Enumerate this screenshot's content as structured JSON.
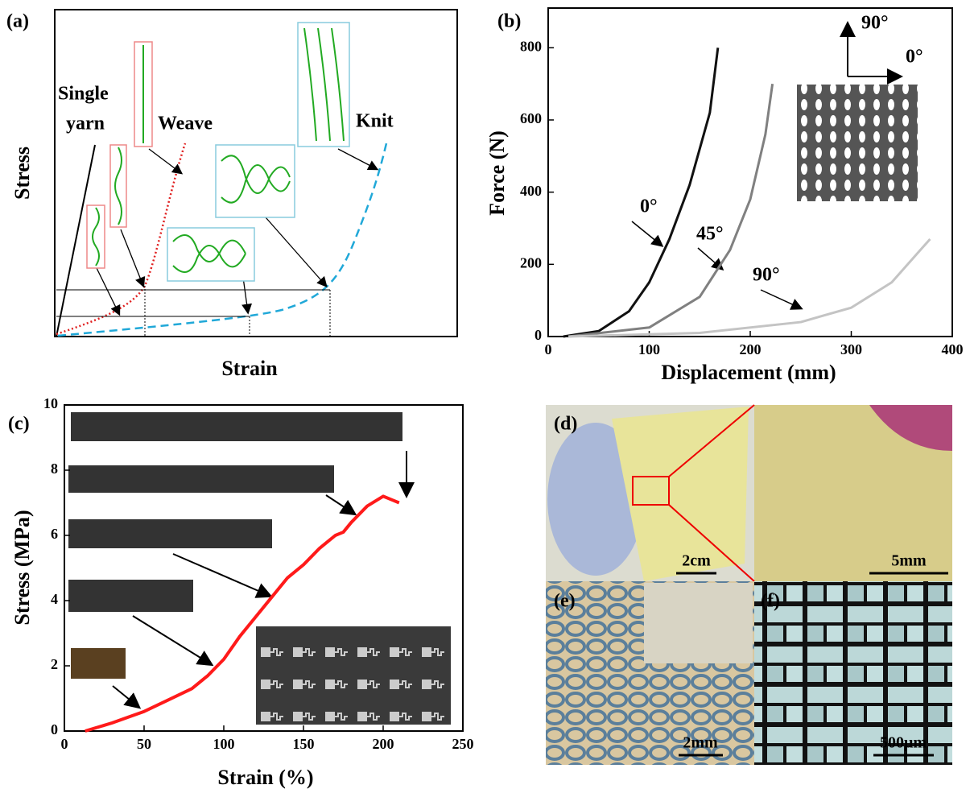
{
  "diagram": {
    "label": "(a)",
    "y_label": "Stress",
    "x_label": "Strain",
    "single_yarn": [
      "Single",
      "yarn"
    ],
    "weave": "Weave",
    "knit": "Knit"
  },
  "chart_data": [
    {
      "type": "line",
      "panel_label": "(b)",
      "x_label": "Displacement (mm)",
      "y_label": "Force (N)",
      "xlim": [
        0,
        400
      ],
      "xticks": [
        0,
        100,
        200,
        300,
        400
      ],
      "ylim": [
        0,
        910
      ],
      "yticks": [
        0,
        200,
        400,
        600,
        800
      ],
      "inset_labels": [
        "90°",
        "0°"
      ],
      "series": [
        {
          "name": "0°",
          "color": "#111111",
          "x": [
            15,
            50,
            80,
            100,
            120,
            140,
            160,
            168
          ],
          "values": [
            0,
            15,
            70,
            150,
            270,
            420,
            620,
            800
          ]
        },
        {
          "name": "45°",
          "color": "#808080",
          "x": [
            20,
            100,
            150,
            180,
            200,
            215,
            222
          ],
          "values": [
            0,
            25,
            110,
            240,
            380,
            560,
            700
          ]
        },
        {
          "name": "90°",
          "color": "#c4c4c4",
          "x": [
            20,
            150,
            250,
            300,
            340,
            378
          ],
          "values": [
            0,
            10,
            40,
            80,
            150,
            270
          ]
        }
      ]
    },
    {
      "type": "line",
      "panel_label": "(c)",
      "x_label": "Strain (%)",
      "y_label": "Stress (MPa)",
      "xlim": [
        0,
        250
      ],
      "xticks": [
        0,
        50,
        100,
        150,
        200,
        250
      ],
      "ylim": [
        0,
        10
      ],
      "yticks": [
        0,
        2,
        4,
        6,
        8,
        10
      ],
      "color": "#ff1a1a",
      "x": [
        13,
        30,
        50,
        65,
        80,
        90,
        100,
        110,
        120,
        130,
        140,
        150,
        160,
        165,
        170,
        175,
        180,
        190,
        200,
        205,
        210
      ],
      "values": [
        0,
        0.25,
        0.6,
        0.95,
        1.3,
        1.7,
        2.2,
        2.9,
        3.5,
        4.1,
        4.7,
        5.1,
        5.6,
        5.8,
        6.0,
        6.1,
        6.4,
        6.9,
        7.2,
        7.1,
        7.0
      ]
    }
  ],
  "photos": {
    "d_label": "(d)",
    "d_scale": "2cm",
    "d2_scale": "5mm",
    "e_label": "(e)",
    "e_scale": "2mm",
    "f_label": "(f)",
    "f_scale": "500μm"
  }
}
